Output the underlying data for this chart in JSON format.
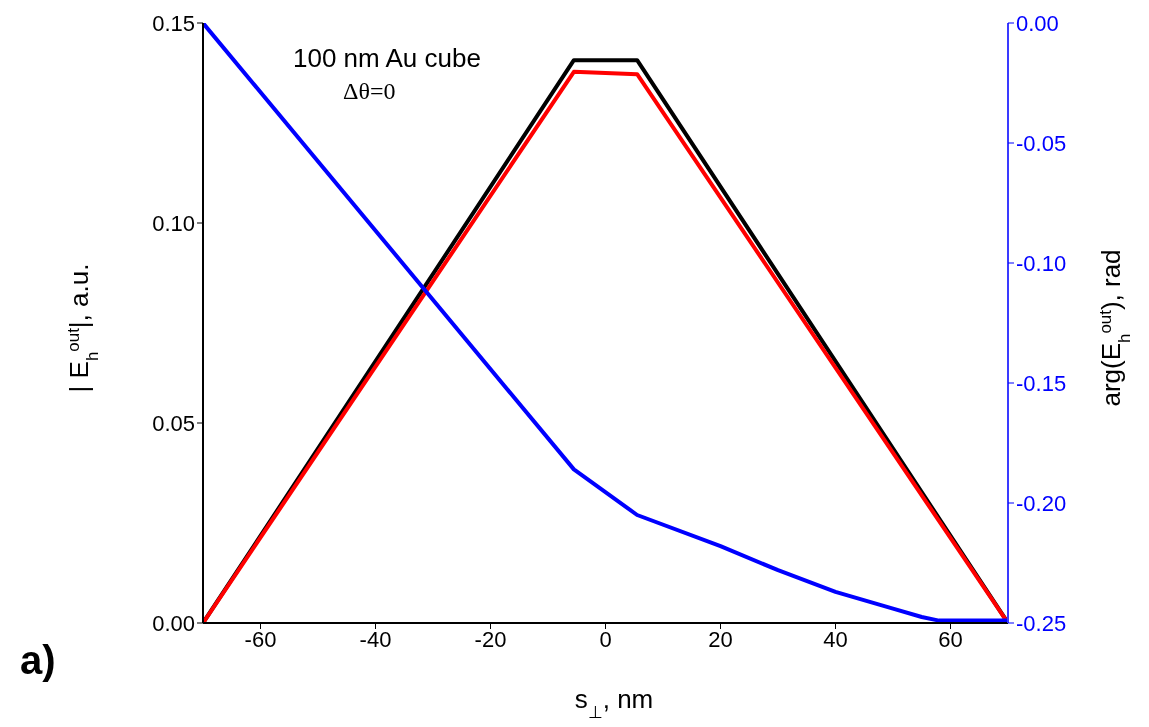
{
  "chart_data": {
    "type": "line",
    "xlabel": "s$_{⊥}$, nm",
    "ylabel": "| E$_{h}$$^{out}$|, a.u.",
    "y2label": "arg(E$_{h}$$^{out}$),  rad",
    "annotations": [
      "100 nm Au cube",
      "Δθ=0",
      "a)"
    ],
    "xlim": [
      -70,
      70
    ],
    "xticks": [
      -60,
      -40,
      -20,
      0,
      20,
      40,
      60
    ],
    "ylim": [
      0,
      0.15
    ],
    "yticks": [
      {
        "value": 0,
        "label": "0.00"
      },
      {
        "value": 0.05,
        "label": "0.05"
      },
      {
        "value": 0.1,
        "label": "0.10"
      },
      {
        "value": 0.15,
        "label": "0.15"
      }
    ],
    "y2lim": [
      -0.25,
      0
    ],
    "y2ticks": [
      {
        "value": 0,
        "label": "0.00"
      },
      {
        "value": -0.05,
        "label": "-0.05"
      },
      {
        "value": -0.1,
        "label": "-0.10"
      },
      {
        "value": -0.15,
        "label": "-0.15"
      },
      {
        "value": -0.2,
        "label": "-0.20"
      },
      {
        "value": -0.25,
        "label": "-0.25"
      }
    ],
    "line_style": "solid",
    "series": [
      {
        "color": "#000000",
        "x": [
          -70,
          -5.5,
          5.5,
          70
        ],
        "values": [
          0,
          0.1407,
          0.1407,
          0
        ]
      },
      {
        "color": "#ff0000",
        "x": [
          -70,
          -5.5,
          5.5,
          70
        ],
        "values": [
          0,
          0.1378,
          0.1372,
          0
        ]
      },
      {
        "color": "#0000ff",
        "axis": "y2",
        "x": [
          -70,
          -5.5,
          5.5,
          20,
          30,
          40,
          50,
          55,
          58,
          60,
          70
        ],
        "values": [
          0,
          -0.186,
          -0.205,
          -0.218,
          -0.228,
          -0.237,
          -0.244,
          -0.2475,
          -0.249,
          -0.249,
          -0.249
        ]
      }
    ]
  }
}
